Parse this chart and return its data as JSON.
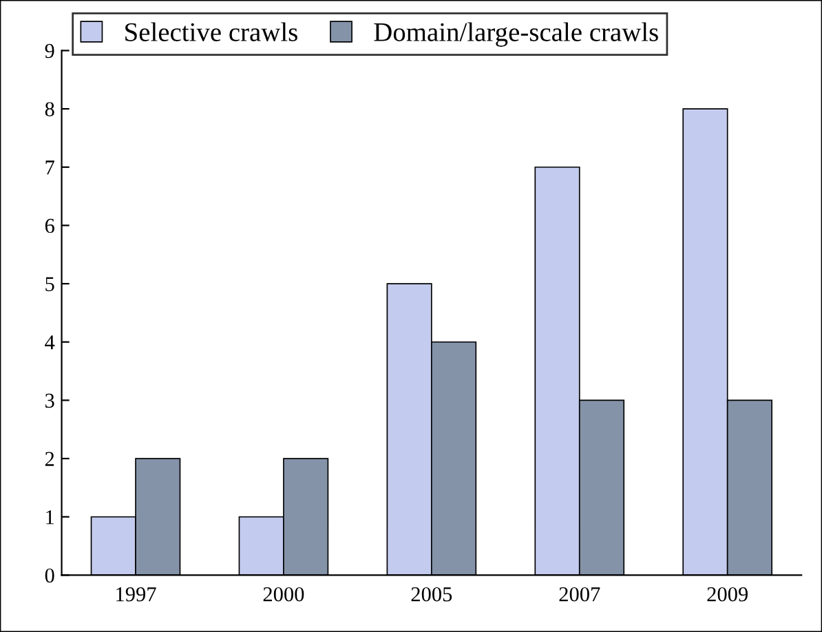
{
  "chart_data": {
    "type": "bar",
    "categories": [
      "1997",
      "2000",
      "2005",
      "2007",
      "2009"
    ],
    "series": [
      {
        "name": "Selective crawls",
        "color": "#c3cbee",
        "values": [
          1,
          1,
          5,
          7,
          8
        ]
      },
      {
        "name": "Domain/large-scale crawls",
        "color": "#8593a9",
        "values": [
          2,
          2,
          4,
          3,
          3
        ]
      }
    ],
    "ylim": [
      0,
      9
    ],
    "yticks": [
      0,
      1,
      2,
      3,
      4,
      5,
      6,
      7,
      8,
      9
    ],
    "grid": false,
    "legend": "top"
  }
}
